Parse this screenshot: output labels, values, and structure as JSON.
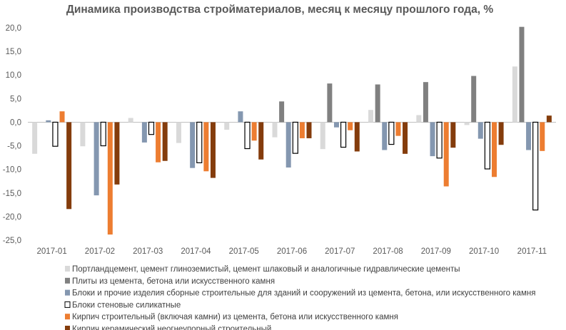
{
  "chart_data": {
    "type": "bar",
    "title": "Динамика производства стройматериалов, месяц к месяцу прошлого года, %",
    "categories": [
      "2017-01",
      "2017-02",
      "2017-03",
      "2017-04",
      "2017-05",
      "2017-06",
      "2017-07",
      "2017-08",
      "2017-09",
      "2017-10",
      "2017-11"
    ],
    "ylim": [
      -25,
      20
    ],
    "yticks": [
      "20,0",
      "15,0",
      "10,0",
      "5,0",
      "0,0",
      "-5,0",
      "-10,0",
      "-15,0",
      "-20,0",
      "-25,0"
    ],
    "ytick_values": [
      20,
      15,
      10,
      5,
      0,
      -5,
      -10,
      -15,
      -20,
      -25
    ],
    "grid": false,
    "legend_position": "bottom",
    "series": [
      {
        "name": "Портландцемент, цемент глиноземистый, цемент шлаковый и аналогичные гидравлические цементы",
        "color": "#d9d9d9",
        "outline": false,
        "values": [
          -6.7,
          -5.1,
          0.9,
          -4.4,
          -1.6,
          -3.2,
          -5.7,
          2.6,
          1.5,
          -0.6,
          11.8
        ]
      },
      {
        "name": "Плиты из цемента, бетона или искусственного камня",
        "color": "#808080",
        "outline": false,
        "values": [
          null,
          null,
          null,
          null,
          null,
          4.4,
          8.2,
          8.0,
          8.5,
          9.8,
          20.2
        ]
      },
      {
        "name": "Блоки и прочие изделия сборные строительные для зданий и сооружений из цемента, бетона, или искусственного камня",
        "color": "#8497b0",
        "outline": false,
        "values": [
          0.4,
          -15.5,
          -4.3,
          -9.7,
          2.3,
          -9.6,
          -1.1,
          -5.9,
          -7.2,
          -3.5,
          -5.9
        ]
      },
      {
        "name": "Блоки стеновые силикатные",
        "color": "#ffffff",
        "outline": true,
        "values": [
          -5.1,
          -5.0,
          -2.6,
          -8.6,
          -5.6,
          -6.6,
          -5.3,
          -4.7,
          -7.6,
          -9.9,
          -18.6
        ]
      },
      {
        "name": "Кирпич строительный (включая камни) из цемента, бетона или искусственного камня",
        "color": "#ed7d31",
        "outline": false,
        "values": [
          2.3,
          -23.8,
          -8.5,
          -10.4,
          -3.9,
          -3.4,
          -1.7,
          -2.9,
          -13.6,
          -11.6,
          -6.1
        ]
      },
      {
        "name": "Кирпич керамический неогнеупорный строительный",
        "color": "#843c0c",
        "outline": false,
        "values": [
          -18.4,
          -13.2,
          -8.2,
          -11.8,
          -7.9,
          -3.4,
          -6.2,
          -6.7,
          -5.4,
          -4.8,
          1.4
        ]
      }
    ]
  }
}
